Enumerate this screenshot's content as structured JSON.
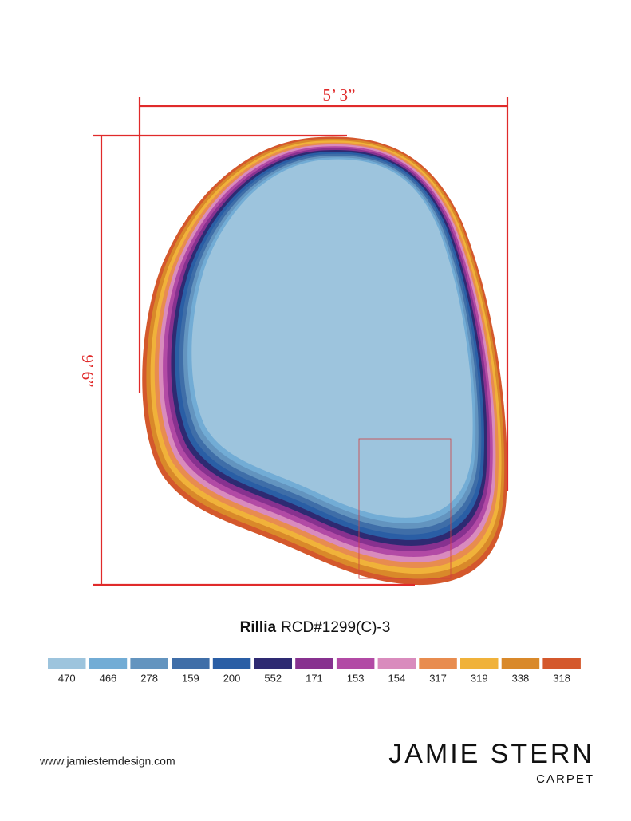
{
  "dimensions": {
    "width": "5’ 3”",
    "length": "9’ 6”"
  },
  "product": {
    "name": "Rillia",
    "code": "RCD#1299(C)-3"
  },
  "swatches": [
    {
      "label": "470",
      "color": "#9dc4dd"
    },
    {
      "label": "466",
      "color": "#72acd5"
    },
    {
      "label": "278",
      "color": "#6394bf"
    },
    {
      "label": "159",
      "color": "#3f6ea8"
    },
    {
      "label": "200",
      "color": "#2a5ea5"
    },
    {
      "label": "552",
      "color": "#2e2a72"
    },
    {
      "label": "171",
      "color": "#87318f"
    },
    {
      "label": "153",
      "color": "#b24aa5"
    },
    {
      "label": "154",
      "color": "#d98bbd"
    },
    {
      "label": "317",
      "color": "#e88c4f"
    },
    {
      "label": "319",
      "color": "#f0b23a"
    },
    {
      "label": "338",
      "color": "#d9892a"
    },
    {
      "label": "318",
      "color": "#d4582c"
    }
  ],
  "footer": {
    "website": "www.jamiesterndesign.com",
    "brand": "JAMIE STERN",
    "subbrand": "CARPET"
  }
}
